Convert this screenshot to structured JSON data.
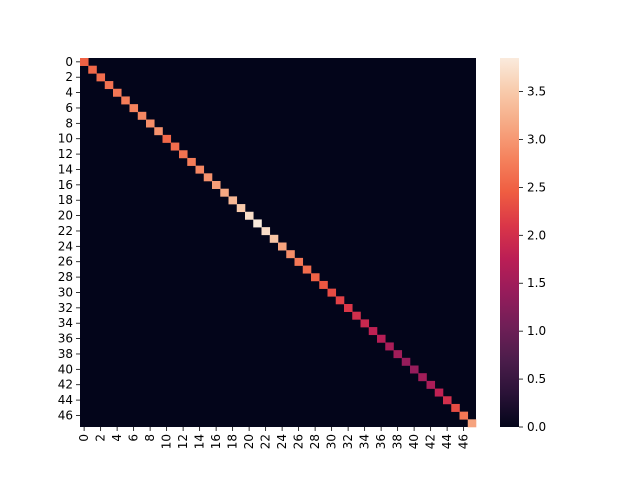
{
  "chart_data": {
    "type": "heatmap",
    "title": "",
    "xlabel": "",
    "ylabel": "",
    "rows": 48,
    "cols": 48,
    "x_tick_labels": [
      "0",
      "2",
      "4",
      "6",
      "8",
      "10",
      "12",
      "14",
      "16",
      "18",
      "20",
      "22",
      "24",
      "26",
      "28",
      "30",
      "32",
      "34",
      "36",
      "38",
      "40",
      "42",
      "44",
      "46"
    ],
    "y_tick_labels": [
      "0",
      "2",
      "4",
      "6",
      "8",
      "10",
      "12",
      "14",
      "16",
      "18",
      "20",
      "22",
      "24",
      "26",
      "28",
      "30",
      "32",
      "34",
      "36",
      "38",
      "40",
      "42",
      "44",
      "46"
    ],
    "off_diagonal_value": 0.0,
    "diagonal_values": [
      2.5,
      2.55,
      2.6,
      2.65,
      2.7,
      2.75,
      2.8,
      2.85,
      2.9,
      2.95,
      2.55,
      2.6,
      2.65,
      2.75,
      2.85,
      2.95,
      3.05,
      3.15,
      3.3,
      3.5,
      3.7,
      3.85,
      3.7,
      3.45,
      3.1,
      2.9,
      2.7,
      2.6,
      2.5,
      2.4,
      2.3,
      2.2,
      2.1,
      2.0,
      1.9,
      1.8,
      1.7,
      1.6,
      1.5,
      1.4,
      1.4,
      1.5,
      1.6,
      1.8,
      2.0,
      2.3,
      2.7,
      3.1
    ],
    "colorbar": {
      "min": 0.0,
      "max": 3.85,
      "tick_labels": [
        "0.0",
        "0.5",
        "1.0",
        "1.5",
        "2.0",
        "2.5",
        "3.0",
        "3.5"
      ],
      "colors": [
        "#03051a",
        "#2a1237",
        "#4c1d4b",
        "#701f57",
        "#961c5b",
        "#bb1e55",
        "#da3648",
        "#ef5d41",
        "#f5825d",
        "#f6a883",
        "#f8caab",
        "#faebdd"
      ]
    }
  }
}
